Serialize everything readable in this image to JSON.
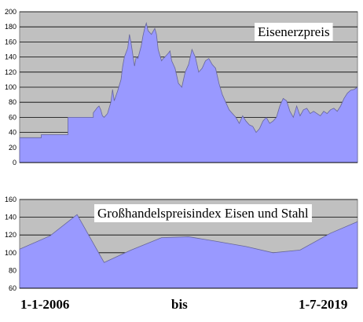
{
  "chart_data": [
    {
      "type": "area",
      "title": "Eisenerzpreis",
      "ylim": [
        0,
        200
      ],
      "yticks": [
        0,
        20,
        40,
        60,
        80,
        100,
        120,
        140,
        160,
        180,
        200
      ],
      "grid": true,
      "legend": "none",
      "x_range": [
        "2006-01-01",
        "2019-07-01"
      ],
      "background_color": "#c0c0c0",
      "fill_color": "#9999ff",
      "series": [
        {
          "x": [
            0,
            0.064,
            0.064,
            0.143,
            0.143,
            0.218,
            0.218,
            0.23,
            0.235,
            0.24,
            0.245,
            0.25,
            0.26,
            0.27,
            0.275,
            0.28,
            0.29,
            0.3,
            0.305,
            0.31,
            0.32,
            0.325,
            0.33,
            0.34,
            0.345,
            0.35,
            0.36,
            0.365,
            0.37,
            0.375,
            0.38,
            0.39,
            0.4,
            0.405,
            0.41,
            0.42,
            0.425,
            0.43,
            0.44,
            0.445,
            0.45,
            0.46,
            0.47,
            0.48,
            0.49,
            0.5,
            0.51,
            0.52,
            0.53,
            0.54,
            0.55,
            0.56,
            0.57,
            0.58,
            0.59,
            0.6,
            0.61,
            0.62,
            0.63,
            0.64,
            0.65,
            0.66,
            0.67,
            0.68,
            0.69,
            0.7,
            0.71,
            0.72,
            0.73,
            0.74,
            0.75,
            0.76,
            0.77,
            0.78,
            0.79,
            0.8,
            0.81,
            0.82,
            0.83,
            0.84,
            0.85,
            0.86,
            0.87,
            0.88,
            0.89,
            0.9,
            0.91,
            0.92,
            0.93,
            0.94,
            0.95,
            0.96,
            0.97,
            0.98,
            0.99,
            1.0
          ],
          "values": [
            33,
            33,
            37,
            37,
            60,
            60,
            66,
            73,
            75,
            70,
            62,
            60,
            65,
            80,
            97,
            82,
            95,
            110,
            128,
            140,
            152,
            170,
            158,
            128,
            140,
            138,
            155,
            168,
            178,
            185,
            175,
            170,
            178,
            170,
            150,
            135,
            138,
            140,
            145,
            148,
            135,
            125,
            105,
            100,
            120,
            130,
            150,
            140,
            120,
            125,
            135,
            138,
            130,
            125,
            105,
            90,
            80,
            70,
            65,
            60,
            52,
            62,
            55,
            50,
            48,
            40,
            45,
            55,
            60,
            52,
            55,
            60,
            75,
            85,
            82,
            68,
            60,
            75,
            62,
            70,
            72,
            65,
            68,
            65,
            62,
            68,
            65,
            70,
            72,
            68,
            75,
            85,
            92,
            96,
            97,
            100
          ]
        }
      ]
    },
    {
      "type": "area",
      "title": "Großhandelspreisindex Eisen und Stahl",
      "ylim": [
        60,
        160
      ],
      "yticks": [
        60,
        80,
        100,
        120,
        140,
        160
      ],
      "grid": true,
      "legend": "none",
      "x_range": [
        "2006-01-01",
        "2019-07-01"
      ],
      "background_color": "#c0c0c0",
      "fill_color": "#9999ff",
      "series": [
        {
          "x": [
            0,
            0.09,
            0.17,
            0.25,
            0.33,
            0.42,
            0.5,
            0.58,
            0.67,
            0.75,
            0.83,
            0.92,
            1.0
          ],
          "values": [
            104,
            119,
            143,
            89,
            103,
            117,
            118,
            113,
            107,
            100,
            103,
            122,
            135
          ]
        }
      ]
    }
  ],
  "footer": {
    "start": "1-1-2006",
    "middle": "bis",
    "end": "1-7-2019"
  }
}
